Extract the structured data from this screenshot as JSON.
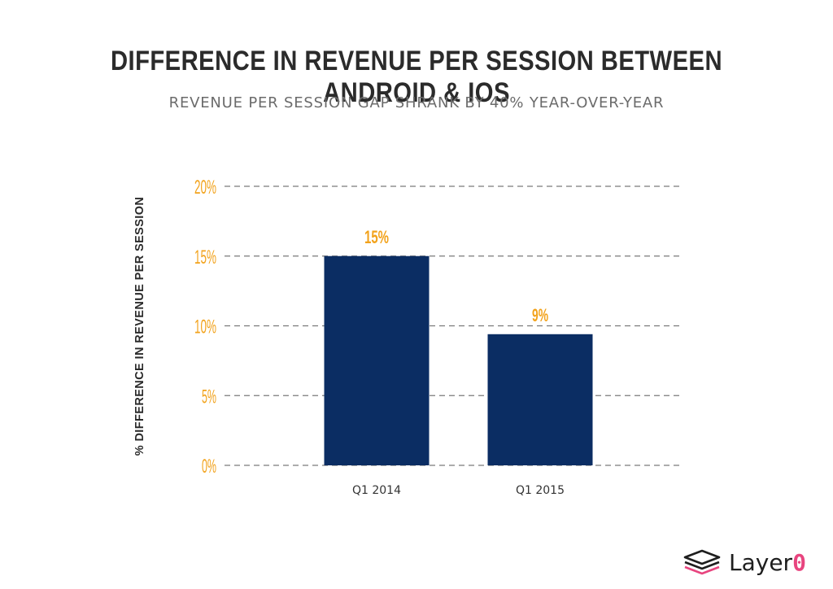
{
  "chart_data": {
    "type": "bar",
    "title": "DIFFERENCE IN REVENUE PER SESSION BETWEEN ANDROID & IOS",
    "subtitle": "REVENUE PER SESSION GAP SHRANK BY 40% YEAR-OVER-YEAR",
    "ylabel": "% DIFFERENCE IN REVENUE PER SESSION",
    "xlabel": "",
    "categories": [
      "Q1 2014",
      "Q1 2015"
    ],
    "values": [
      15,
      9.4
    ],
    "data_labels": [
      "15%",
      "9%"
    ],
    "y_ticks": [
      {
        "value": 0,
        "label": "0%"
      },
      {
        "value": 5,
        "label": "5%"
      },
      {
        "value": 10,
        "label": "10%"
      },
      {
        "value": 15,
        "label": "15%"
      },
      {
        "value": 20,
        "label": "20%"
      }
    ],
    "ylim": [
      0,
      20
    ],
    "grid": true,
    "legend": false
  },
  "colors": {
    "bar": "#0b2d63",
    "tick_label": "#f2a21b",
    "data_label": "#f2a21b",
    "grid": "#7a7a7a",
    "title": "#2b2b2b",
    "subtitle": "#6b6b6b",
    "logo_accent": "#e8457f"
  },
  "logo": {
    "icon": "layers-icon",
    "text_main": "Layer",
    "text_accent": "0"
  }
}
